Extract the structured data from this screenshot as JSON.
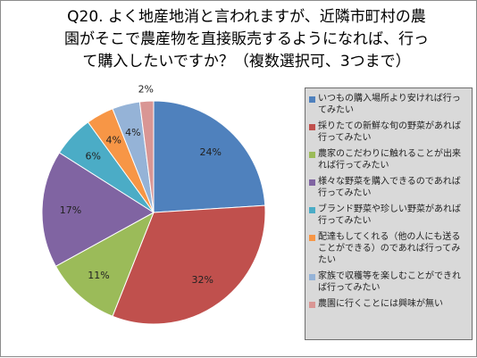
{
  "title": "Q20. よく地産地消と言われますが、近隣市町村の農\n園がそこで農産物を直接販売するようになれば、行っ\nて購入したいですか？（複数選択可、3つまで）",
  "chart_data": {
    "type": "pie",
    "title": "Q20. よく地産地消と言われますが、近隣市町村の農園がそこで農産物を直接販売するようになれば、行って購入したいですか？（複数選択可、3つまで）",
    "legend_position": "right",
    "slices": [
      {
        "label": "いつもの購入場所より安ければ行ってみたい",
        "value": 24,
        "data_label": "24%",
        "color": "#4f81bd"
      },
      {
        "label": "採りたての新鮮な旬の野菜があれば行ってみたい",
        "value": 32,
        "data_label": "32%",
        "color": "#c0504d"
      },
      {
        "label": "農家のこだわりに触れることが出来れば行ってみたい",
        "value": 11,
        "data_label": "11%",
        "color": "#9bbb59"
      },
      {
        "label": "様々な野菜を購入できるのであれば行ってみたい",
        "value": 17,
        "data_label": "17%",
        "color": "#8064a2"
      },
      {
        "label": "ブランド野菜や珍しい野菜があれば行ってみたい",
        "value": 6,
        "data_label": "6%",
        "color": "#4bacc6"
      },
      {
        "label": "配達もしてくれる（他の人にも送ることができる）のであれば行ってみたい",
        "value": 4,
        "data_label": "4%",
        "color": "#f79646"
      },
      {
        "label": "家族で収穫等を楽しむことができれば行ってみたい",
        "value": 4,
        "data_label": "4%",
        "color": "#95b3d7"
      },
      {
        "label": "農園に行くことには興味が無い",
        "value": 2,
        "data_label": "2%",
        "color": "#d99694"
      }
    ]
  }
}
